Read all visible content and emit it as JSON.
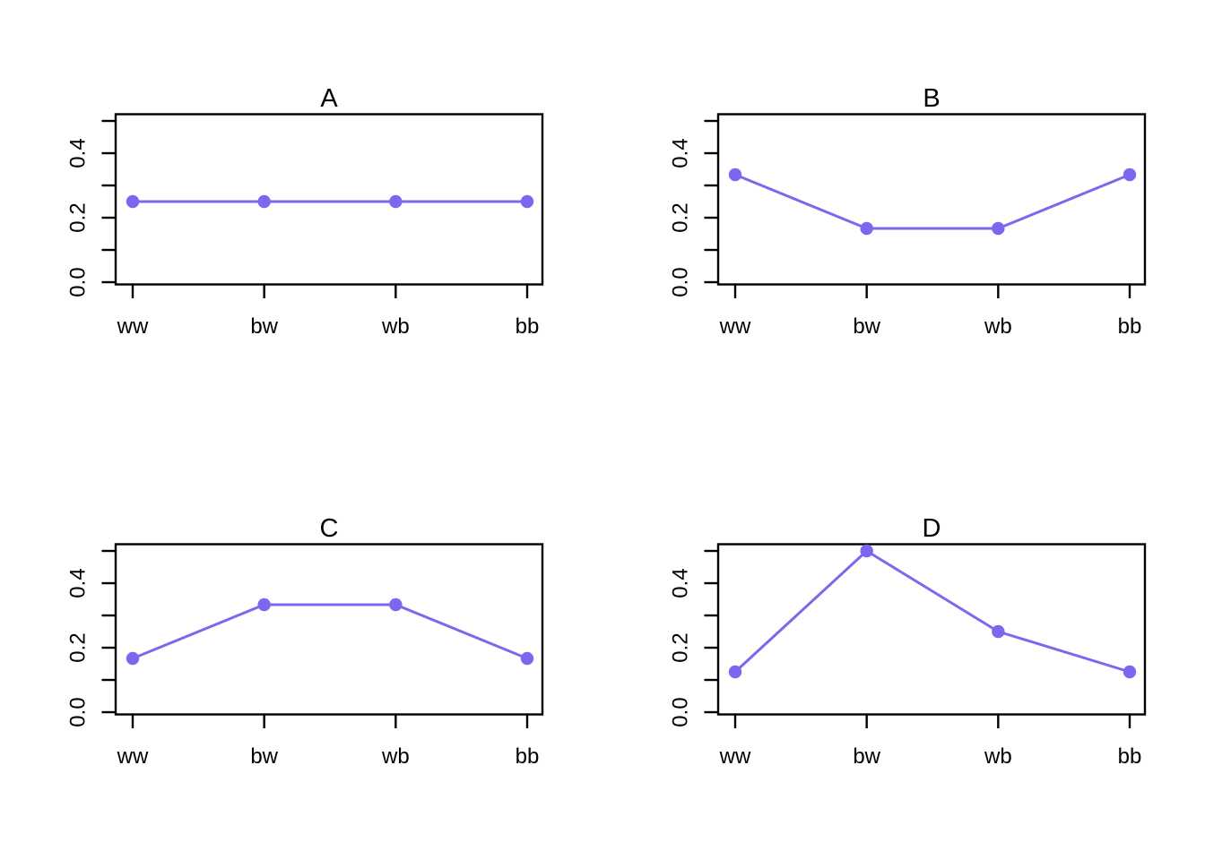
{
  "figure": {
    "background": "#ffffff",
    "rows": 2,
    "cols": 2,
    "axis_color": "#000000",
    "series_color": "#7B68EE"
  },
  "chart_data": [
    {
      "type": "line",
      "title": "A",
      "categories": [
        "ww",
        "bw",
        "wb",
        "bb"
      ],
      "values": [
        0.25,
        0.25,
        0.25,
        0.25
      ],
      "xlabel": "",
      "ylabel": "",
      "ylim": [
        0,
        0.52
      ],
      "yticks_minor": [
        0,
        0.1,
        0.2,
        0.3,
        0.4,
        0.5
      ],
      "yticks_labeled": [
        {
          "value": 0.0,
          "label": "0.0"
        },
        {
          "value": 0.2,
          "label": "0.2"
        },
        {
          "value": 0.4,
          "label": "0.4"
        }
      ],
      "grid": false,
      "legend": "none",
      "marker": "circle",
      "line_color": "#7B68EE"
    },
    {
      "type": "line",
      "title": "B",
      "categories": [
        "ww",
        "bw",
        "wb",
        "bb"
      ],
      "values": [
        0.3333,
        0.1667,
        0.1667,
        0.3333
      ],
      "xlabel": "",
      "ylabel": "",
      "ylim": [
        0,
        0.52
      ],
      "yticks_minor": [
        0,
        0.1,
        0.2,
        0.3,
        0.4,
        0.5
      ],
      "yticks_labeled": [
        {
          "value": 0.0,
          "label": "0.0"
        },
        {
          "value": 0.2,
          "label": "0.2"
        },
        {
          "value": 0.4,
          "label": "0.4"
        }
      ],
      "grid": false,
      "legend": "none",
      "marker": "circle",
      "line_color": "#7B68EE"
    },
    {
      "type": "line",
      "title": "C",
      "categories": [
        "ww",
        "bw",
        "wb",
        "bb"
      ],
      "values": [
        0.1667,
        0.3333,
        0.3333,
        0.1667
      ],
      "xlabel": "",
      "ylabel": "",
      "ylim": [
        0,
        0.52
      ],
      "yticks_minor": [
        0,
        0.1,
        0.2,
        0.3,
        0.4,
        0.5
      ],
      "yticks_labeled": [
        {
          "value": 0.0,
          "label": "0.0"
        },
        {
          "value": 0.2,
          "label": "0.2"
        },
        {
          "value": 0.4,
          "label": "0.4"
        }
      ],
      "grid": false,
      "legend": "none",
      "marker": "circle",
      "line_color": "#7B68EE"
    },
    {
      "type": "line",
      "title": "D",
      "categories": [
        "ww",
        "bw",
        "wb",
        "bb"
      ],
      "values": [
        0.125,
        0.5,
        0.25,
        0.125
      ],
      "xlabel": "",
      "ylabel": "",
      "ylim": [
        0,
        0.52
      ],
      "yticks_minor": [
        0,
        0.1,
        0.2,
        0.3,
        0.4,
        0.5
      ],
      "yticks_labeled": [
        {
          "value": 0.0,
          "label": "0.0"
        },
        {
          "value": 0.2,
          "label": "0.2"
        },
        {
          "value": 0.4,
          "label": "0.4"
        }
      ],
      "grid": false,
      "legend": "none",
      "marker": "circle",
      "line_color": "#7B68EE"
    }
  ]
}
